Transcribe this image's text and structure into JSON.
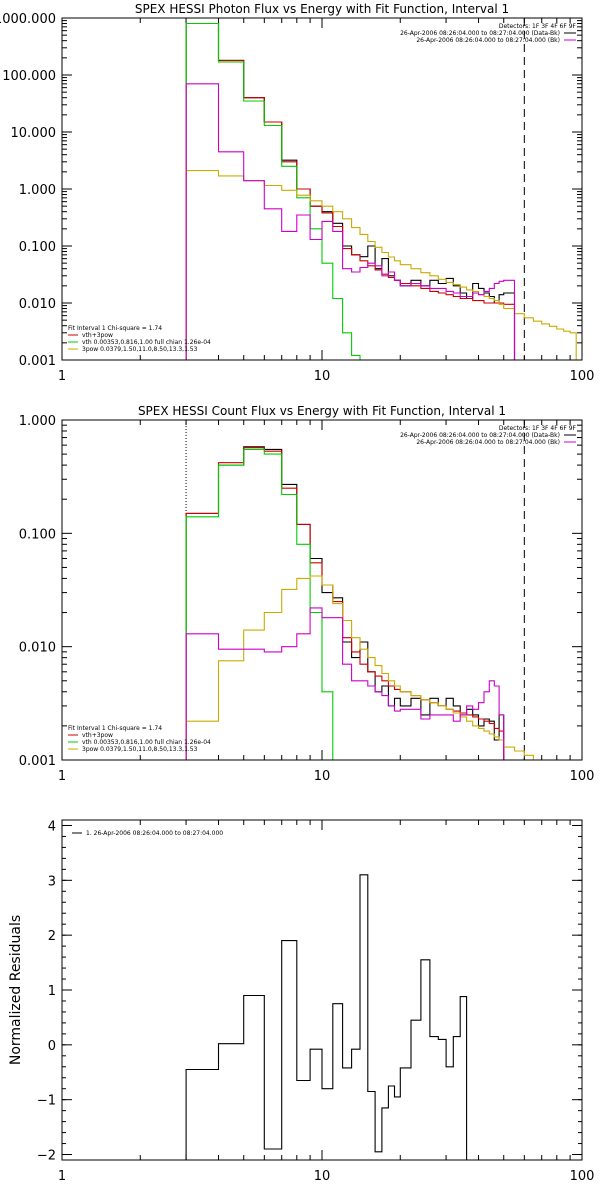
{
  "chart_data": [
    {
      "type": "line",
      "title": "SPEX HESSI Photon Flux vs Energy with Fit Function, Interval 1",
      "xscale": "log",
      "yscale": "log",
      "xlim": [
        1,
        100
      ],
      "ylim": [
        0.001,
        1000
      ],
      "x_ticks": [
        {
          "v": 1,
          "label": "1"
        },
        {
          "v": 10,
          "label": "10"
        },
        {
          "v": 100,
          "label": "100"
        }
      ],
      "y_ticks": [
        {
          "v": 0.001,
          "label": "0.001"
        },
        {
          "v": 0.01,
          "label": "0.010"
        },
        {
          "v": 0.1,
          "label": "0.100"
        },
        {
          "v": 1,
          "label": "1.000"
        },
        {
          "v": 10,
          "label": "10.000"
        },
        {
          "v": 100,
          "label": "100.000"
        },
        {
          "v": 1000,
          "label": "1000.000"
        }
      ],
      "vlines": [
        {
          "x": 3,
          "style": "dotted",
          "color": "#000000"
        },
        {
          "x": 60,
          "style": "dashed",
          "color": "#000000"
        }
      ],
      "legend_top": {
        "header": "Detectors: 1F 3F 4F 6F 9F",
        "entries": [
          {
            "label": "26-Apr-2006 08:26:04.000 to 08:27:04.000 (Data-Bk)",
            "color": "#000000"
          },
          {
            "label": "26-Apr-2006 08:26:04.000 to 08:27:04.000 (Bk)",
            "color": "#cc00cc"
          }
        ]
      },
      "legend_bottom": {
        "header": "Fit Interval 1    Chi-square = 1.74",
        "entries": [
          {
            "label": "vth+3pow",
            "color": "#cc0000"
          },
          {
            "label": "vth 0.00353,0.816,1.00   full chian 1.26e-04",
            "color": "#00cc00"
          },
          {
            "label": "3pow 0.0379,1.50,11.0,8.50,13.3,1.53",
            "color": "#ccaa00"
          }
        ]
      },
      "bin_edges": [
        3,
        3.5,
        4,
        4.5,
        5,
        5.5,
        6,
        6.5,
        7,
        7.5,
        8,
        8.5,
        9,
        9.5,
        10,
        10.5,
        11,
        11.5,
        12,
        13,
        14,
        15,
        16,
        17,
        18,
        19,
        20,
        22,
        24,
        26,
        28,
        30,
        32,
        34,
        36,
        38,
        40,
        42,
        44,
        46,
        48,
        50,
        55,
        60,
        65,
        70,
        75,
        80,
        85,
        90,
        95,
        100
      ],
      "series": [
        {
          "name": "Data-Bk",
          "color": "#000000",
          "values": [
            800,
            800,
            180,
            180,
            40,
            40,
            15,
            15,
            3.2,
            3.2,
            1.0,
            1.0,
            0.5,
            0.5,
            0.4,
            0.4,
            0.25,
            0.25,
            0.1,
            0.07,
            0.065,
            0.1,
            0.04,
            0.06,
            0.03,
            0.025,
            0.02,
            0.025,
            0.02,
            0.025,
            0.022,
            0.027,
            0.02,
            0.015,
            0.012,
            0.022,
            0.018,
            0.015,
            0.013,
            0.01,
            0.014,
            0.015
          ]
        },
        {
          "name": "vth+3pow",
          "color": "#cc0000",
          "values": [
            800,
            800,
            180,
            180,
            40,
            40,
            15,
            15,
            3.0,
            3.0,
            1.0,
            1.0,
            0.5,
            0.5,
            0.38,
            0.38,
            0.22,
            0.22,
            0.09,
            0.07,
            0.055,
            0.045,
            0.038,
            0.032,
            0.028,
            0.025,
            0.022,
            0.02,
            0.018,
            0.016,
            0.015,
            0.014,
            0.013,
            0.012,
            0.012,
            0.011,
            0.011,
            0.01,
            0.01,
            0.01,
            0.01,
            0.0095
          ]
        },
        {
          "name": "vth",
          "color": "#00cc00",
          "values": [
            800,
            800,
            170,
            170,
            35,
            35,
            13,
            13,
            2.5,
            2.5,
            0.7,
            0.7,
            0.2,
            0.2,
            0.05,
            0.05,
            0.012,
            0.012,
            0.003,
            0.0012
          ]
        },
        {
          "name": "3pow",
          "color": "#ccaa00",
          "values": [
            2.1,
            2.1,
            1.7,
            1.7,
            1.4,
            1.4,
            1.15,
            1.15,
            0.95,
            0.95,
            0.78,
            0.78,
            0.62,
            0.62,
            0.5,
            0.5,
            0.4,
            0.4,
            0.3,
            0.21,
            0.16,
            0.12,
            0.095,
            0.077,
            0.064,
            0.055,
            0.047,
            0.04,
            0.034,
            0.03,
            0.026,
            0.023,
            0.021,
            0.019,
            0.017,
            0.016,
            0.014,
            0.013,
            0.012,
            0.011,
            0.0095,
            0.008,
            0.0065,
            0.0055,
            0.0048,
            0.0043,
            0.0039,
            0.0035,
            0.0032,
            0.003
          ]
        },
        {
          "name": "Bk",
          "color": "#cc00cc",
          "values": [
            70,
            70,
            4.5,
            4.5,
            1.4,
            1.4,
            0.45,
            0.45,
            0.18,
            0.18,
            0.35,
            0.35,
            0.13,
            0.13,
            0.27,
            0.27,
            0.18,
            0.18,
            0.04,
            0.035,
            0.042,
            0.05,
            0.045,
            0.03,
            0.035,
            0.025,
            0.02,
            0.022,
            0.02,
            0.018,
            0.018,
            0.016,
            0.015,
            0.013,
            0.013,
            0.015,
            0.014,
            0.016,
            0.018,
            0.022,
            0.024,
            0.025
          ]
        }
      ]
    },
    {
      "type": "line",
      "title": "SPEX HESSI Count Flux vs Energy with Fit Function, Interval 1",
      "xscale": "log",
      "yscale": "log",
      "xlim": [
        1,
        100
      ],
      "ylim": [
        0.001,
        1
      ],
      "x_ticks": [
        {
          "v": 1,
          "label": "1"
        },
        {
          "v": 10,
          "label": "10"
        },
        {
          "v": 100,
          "label": "100"
        }
      ],
      "y_ticks": [
        {
          "v": 0.001,
          "label": "0.001"
        },
        {
          "v": 0.01,
          "label": "0.010"
        },
        {
          "v": 0.1,
          "label": "0.100"
        },
        {
          "v": 1,
          "label": "1.000"
        }
      ],
      "vlines": [
        {
          "x": 3,
          "style": "dotted",
          "color": "#000000"
        },
        {
          "x": 60,
          "style": "dashed",
          "color": "#000000"
        }
      ],
      "legend_top": {
        "header": "Detectors: 1F 3F 4F 6F 9F",
        "entries": [
          {
            "label": "26-Apr-2006 08:26:04.000 to 08:27:04.000 (Data-Bk)",
            "color": "#000000"
          },
          {
            "label": "26-Apr-2006 08:26:04.000 to 08:27:04.000 (Bk)",
            "color": "#cc00cc"
          }
        ]
      },
      "legend_bottom": {
        "header": "Fit Interval 1    Chi-square = 1.74",
        "entries": [
          {
            "label": "vth+3pow",
            "color": "#cc0000"
          },
          {
            "label": "vth 0.00353,0.816,1.00   full chian 1.26e-04",
            "color": "#00cc00"
          },
          {
            "label": "3pow 0.0379,1.50,11.0,8.50,13.3,1.53",
            "color": "#ccaa00"
          }
        ]
      },
      "bin_edges": [
        3,
        4,
        5,
        6,
        7,
        8,
        9,
        10,
        11,
        12,
        13,
        14,
        15,
        16,
        17,
        18,
        19,
        20,
        22,
        24,
        26,
        28,
        30,
        32,
        34,
        36,
        38,
        40,
        42,
        44,
        46,
        48,
        50,
        55,
        60,
        65,
        70,
        75,
        80,
        85
      ],
      "series": [
        {
          "name": "Data-Bk",
          "color": "#000000",
          "values": [
            0.15,
            0.4,
            0.58,
            0.55,
            0.27,
            0.12,
            0.06,
            0.03,
            0.027,
            0.011,
            0.008,
            0.011,
            0.006,
            0.004,
            0.0045,
            0.003,
            0.0035,
            0.003,
            0.0035,
            0.0025,
            0.0035,
            0.003,
            0.0035,
            0.003,
            0.0025,
            0.0028,
            0.0025,
            0.002,
            0.0023,
            0.0022,
            0.0015,
            0.0025
          ]
        },
        {
          "name": "vth+3pow",
          "color": "#cc0000",
          "values": [
            0.15,
            0.42,
            0.57,
            0.53,
            0.25,
            0.12,
            0.055,
            0.035,
            0.025,
            0.012,
            0.009,
            0.007,
            0.006,
            0.0055,
            0.005,
            0.0045,
            0.0042,
            0.004,
            0.0037,
            0.0034,
            0.0032,
            0.003,
            0.0028,
            0.0027,
            0.0026,
            0.0025,
            0.0024,
            0.0023,
            0.0022,
            0.0021,
            0.0019,
            0.0018
          ]
        },
        {
          "name": "vth",
          "color": "#00cc00",
          "values": [
            0.14,
            0.4,
            0.55,
            0.5,
            0.22,
            0.08,
            0.02,
            0.004,
            0.001
          ]
        },
        {
          "name": "3pow",
          "color": "#ccaa00",
          "values": [
            0.0022,
            0.0075,
            0.014,
            0.02,
            0.032,
            0.04,
            0.042,
            0.035,
            0.024,
            0.017,
            0.012,
            0.0095,
            0.008,
            0.0068,
            0.0058,
            0.005,
            0.0045,
            0.004,
            0.0037,
            0.0034,
            0.0032,
            0.003,
            0.0028,
            0.0026,
            0.0024,
            0.0022,
            0.002,
            0.0019,
            0.0018,
            0.0017,
            0.0016,
            0.0015,
            0.0013,
            0.0012,
            0.0011,
            0.001
          ]
        },
        {
          "name": "Bk",
          "color": "#cc00cc",
          "values": [
            0.013,
            0.0095,
            0.0095,
            0.009,
            0.01,
            0.013,
            0.022,
            0.018,
            0.018,
            0.007,
            0.005,
            0.005,
            0.0045,
            0.004,
            0.0037,
            0.003,
            0.0027,
            0.0028,
            0.0028,
            0.0023,
            0.0025,
            0.0025,
            0.0025,
            0.0022,
            0.0025,
            0.003,
            0.0028,
            0.0032,
            0.004,
            0.005,
            0.0045,
            0.0025
          ]
        }
      ]
    },
    {
      "type": "line",
      "title": "",
      "xscale": "log",
      "yscale": "linear",
      "xlim": [
        1,
        100
      ],
      "ylim": [
        -2.1,
        4.1
      ],
      "ylabel": "Normalized Residuals",
      "x_ticks": [
        {
          "v": 1,
          "label": "1"
        },
        {
          "v": 10,
          "label": "10"
        },
        {
          "v": 100,
          "label": "100"
        }
      ],
      "y_ticks": [
        {
          "v": -2,
          "label": "−2"
        },
        {
          "v": -1,
          "label": "−1"
        },
        {
          "v": 0,
          "label": "0"
        },
        {
          "v": 1,
          "label": "1"
        },
        {
          "v": 2,
          "label": "2"
        },
        {
          "v": 3,
          "label": "3"
        },
        {
          "v": 4,
          "label": "4"
        }
      ],
      "legend_top_left": {
        "entries": [
          {
            "label": "1. 26-Apr-2006 08:26:04.000 to 08:27:04.000",
            "color": "#000000"
          }
        ]
      },
      "bin_edges": [
        3,
        4,
        5,
        6,
        7,
        8,
        9,
        10,
        11,
        12,
        13,
        14,
        15,
        16,
        17,
        18,
        19,
        20,
        22,
        24,
        26,
        28,
        30,
        32,
        34,
        36,
        38,
        40,
        42,
        44,
        46,
        48,
        50,
        55,
        60
      ],
      "series": [
        {
          "name": "1. 26-Apr-2006 08:26:04.000 to 08:27:04.000",
          "color": "#000000",
          "values": [
            -0.45,
            0.02,
            0.9,
            -1.9,
            1.9,
            -0.65,
            -0.08,
            -0.8,
            0.75,
            -0.42,
            -0.08,
            3.1,
            -0.85,
            -1.95,
            -1.15,
            -0.75,
            -0.95,
            -0.42,
            0.45,
            1.55,
            0.15,
            0.1,
            -0.4,
            0.15,
            0.88
          ]
        }
      ]
    }
  ]
}
